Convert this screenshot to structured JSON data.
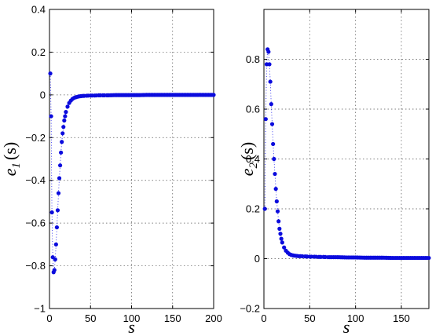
{
  "chart_data": [
    {
      "type": "line",
      "panel": "left",
      "xlabel": "s",
      "ylabel": "e",
      "ylabel_sub": "1",
      "ylabel_arg": "(s)",
      "xlim": [
        0,
        200
      ],
      "ylim": [
        -1,
        0.4
      ],
      "xticks": [
        0,
        50,
        100,
        150,
        200
      ],
      "xtick_labels": [
        "0",
        "50",
        "100",
        "150",
        "200"
      ],
      "yticks": [
        -1,
        -0.8,
        -0.6,
        -0.4,
        -0.2,
        0,
        0.2,
        0.4
      ],
      "ytick_labels": [
        "−1",
        "−0.8",
        "−0.6",
        "−0.4",
        "−0.2",
        "0",
        "0.2",
        "0.4"
      ],
      "grid": true,
      "marker": "dot",
      "color": "#0b0bdd",
      "series": [
        {
          "x": [
            1,
            2,
            3,
            4,
            5,
            6,
            7,
            8,
            9,
            10,
            11,
            12,
            13,
            14,
            15,
            16,
            17,
            18,
            19,
            20,
            22,
            24,
            26,
            28,
            30,
            32,
            34,
            36,
            38,
            40,
            45,
            50,
            55,
            60,
            65,
            70,
            80,
            90,
            100,
            110,
            120,
            130,
            140,
            150,
            160,
            170,
            180,
            190,
            200
          ],
          "y": [
            0.1,
            -0.1,
            -0.55,
            -0.76,
            -0.83,
            -0.82,
            -0.77,
            -0.7,
            -0.62,
            -0.54,
            -0.46,
            -0.39,
            -0.33,
            -0.27,
            -0.22,
            -0.18,
            -0.15,
            -0.12,
            -0.1,
            -0.08,
            -0.055,
            -0.038,
            -0.027,
            -0.019,
            -0.014,
            -0.011,
            -0.009,
            -0.007,
            -0.006,
            -0.005,
            -0.004,
            -0.003,
            -0.003,
            -0.002,
            -0.002,
            -0.002,
            -0.001,
            -0.001,
            -0.001,
            -0.001,
            0,
            0,
            0,
            0,
            0,
            0,
            0,
            0,
            0
          ]
        }
      ]
    },
    {
      "type": "line",
      "panel": "right",
      "xlabel": "s",
      "ylabel": "e",
      "ylabel_sub": "2",
      "ylabel_arg": "(s)",
      "xlim": [
        0,
        180
      ],
      "ylim": [
        -0.2,
        1
      ],
      "xticks": [
        0,
        50,
        100,
        150
      ],
      "xtick_labels": [
        "0",
        "50",
        "100",
        "150"
      ],
      "yticks": [
        -0.2,
        0,
        0.2,
        0.4,
        0.6,
        0.8
      ],
      "ytick_labels": [
        "−0.2",
        "0",
        "0.2",
        "0.4",
        "0.6",
        "0.8"
      ],
      "grid": true,
      "marker": "dot",
      "color": "#0b0bdd",
      "series": [
        {
          "x": [
            1,
            2,
            3,
            4,
            5,
            6,
            7,
            8,
            9,
            10,
            11,
            12,
            13,
            14,
            15,
            16,
            17,
            18,
            19,
            20,
            22,
            24,
            26,
            28,
            30,
            32,
            34,
            36,
            38,
            40,
            45,
            50,
            55,
            60,
            65,
            70,
            80,
            90,
            100,
            110,
            120,
            130,
            140,
            150,
            160,
            170,
            180
          ],
          "y": [
            0.2,
            0.56,
            0.78,
            0.84,
            0.83,
            0.78,
            0.71,
            0.62,
            0.54,
            0.46,
            0.4,
            0.34,
            0.28,
            0.23,
            0.19,
            0.15,
            0.12,
            0.1,
            0.08,
            0.065,
            0.045,
            0.032,
            0.024,
            0.018,
            0.015,
            0.013,
            0.012,
            0.011,
            0.01,
            0.01,
            0.009,
            0.008,
            0.008,
            0.007,
            0.007,
            0.006,
            0.006,
            0.005,
            0.005,
            0.004,
            0.004,
            0.004,
            0.003,
            0.003,
            0.003,
            0.003,
            0.003
          ]
        }
      ]
    }
  ]
}
